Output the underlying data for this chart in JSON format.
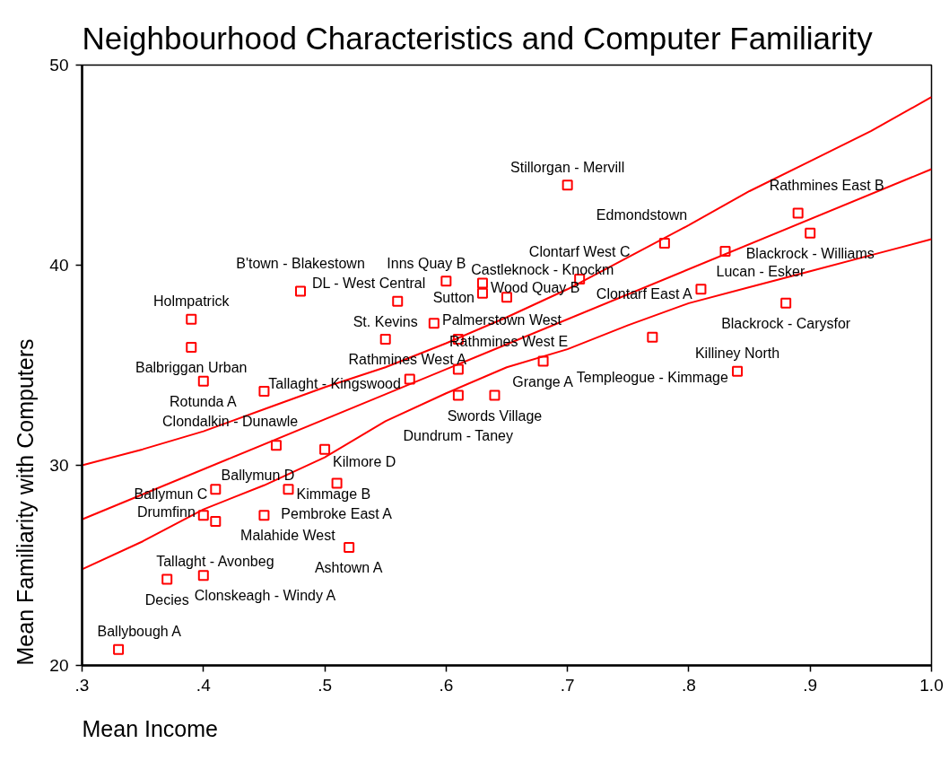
{
  "chart_data": {
    "type": "scatter",
    "title": "Neighbourhood Characteristics and Computer Familiarity",
    "xlabel": "Mean Income",
    "ylabel": "Mean Familiarity with Computers",
    "xlim": [
      0.3,
      1.0
    ],
    "ylim": [
      20,
      50
    ],
    "xticks": [
      {
        "value": 0.3,
        "label": ".3"
      },
      {
        "value": 0.4,
        "label": ".4"
      },
      {
        "value": 0.5,
        "label": ".5"
      },
      {
        "value": 0.6,
        "label": ".6"
      },
      {
        "value": 0.7,
        "label": ".7"
      },
      {
        "value": 0.8,
        "label": ".8"
      },
      {
        "value": 0.9,
        "label": ".9"
      },
      {
        "value": 1.0,
        "label": "1.0"
      }
    ],
    "yticks": [
      20,
      30,
      40,
      50
    ],
    "series": [
      {
        "marker": "square",
        "color": "#ff0000",
        "x": [
          0.33,
          0.37,
          0.4,
          0.52,
          0.4,
          0.41,
          0.45,
          0.41,
          0.47,
          0.51,
          0.46,
          0.5,
          0.45,
          0.4,
          0.39,
          0.39,
          0.48,
          0.56,
          0.59,
          0.55,
          0.61,
          0.61,
          0.57,
          0.61,
          0.64,
          0.6,
          0.63,
          0.63,
          0.65,
          0.71,
          0.7,
          0.68,
          0.77,
          0.84,
          0.78,
          0.83,
          0.81,
          0.88,
          0.89,
          0.9
        ],
        "values": [
          20.8,
          24.3,
          24.5,
          25.9,
          27.5,
          27.2,
          27.5,
          28.8,
          28.8,
          29.1,
          31.0,
          30.8,
          33.7,
          34.2,
          35.9,
          37.3,
          38.7,
          38.2,
          37.1,
          36.3,
          36.3,
          34.8,
          34.3,
          33.5,
          33.5,
          39.2,
          39.1,
          38.6,
          38.4,
          39.3,
          44.0,
          35.2,
          36.4,
          34.7,
          41.1,
          40.7,
          38.8,
          38.1,
          42.6,
          41.6
        ]
      },
      {
        "type": "line",
        "color": "#ff0000",
        "x": [
          0.3,
          1.0
        ],
        "values": [
          27.3,
          44.8
        ]
      },
      {
        "type": "line",
        "color": "#ff0000",
        "x": [
          0.3,
          0.35,
          0.4,
          0.45,
          0.5,
          0.55,
          0.6,
          0.65,
          0.7,
          0.75,
          0.8,
          0.85,
          0.9,
          0.95,
          1.0
        ],
        "values": [
          30.0,
          30.8,
          31.7,
          32.8,
          33.9,
          34.9,
          36.1,
          37.4,
          38.8,
          40.4,
          42.0,
          43.7,
          45.2,
          46.7,
          48.4
        ]
      },
      {
        "type": "line",
        "color": "#ff0000",
        "x": [
          0.3,
          0.35,
          0.4,
          0.45,
          0.5,
          0.55,
          0.6,
          0.65,
          0.7,
          0.75,
          0.8,
          0.85,
          0.9,
          0.95,
          1.0
        ],
        "values": [
          24.8,
          26.2,
          27.8,
          29.0,
          30.4,
          32.2,
          33.6,
          34.9,
          35.8,
          37.0,
          38.1,
          38.9,
          39.7,
          40.5,
          41.3
        ]
      }
    ],
    "annotations": [
      {
        "text": "Ballybough A",
        "x": 0.33,
        "y": 20.8
      },
      {
        "text": "Decies",
        "x": 0.37,
        "y": 24.3
      },
      {
        "text": "Clonskeagh - Windy A",
        "x": 0.4,
        "y": 24.5
      },
      {
        "text": "Ashtown A",
        "x": 0.52,
        "y": 25.9
      },
      {
        "text": "Drumfinn",
        "x": 0.4,
        "y": 27.5
      },
      {
        "text": "Tallaght - Avonbeg",
        "x": 0.41,
        "y": 27.2
      },
      {
        "text": "Malahide West",
        "x": 0.45,
        "y": 27.5
      },
      {
        "text": "Ballymun C",
        "x": 0.41,
        "y": 28.8
      },
      {
        "text": "Kimmage B",
        "x": 0.47,
        "y": 28.8
      },
      {
        "text": "Pembroke East A",
        "x": 0.51,
        "y": 29.1
      },
      {
        "text": "Ballymun D",
        "x": 0.46,
        "y": 31.0
      },
      {
        "text": "Kilmore D",
        "x": 0.5,
        "y": 30.8
      },
      {
        "text": "Clondalkin - Dunawle",
        "x": 0.45,
        "y": 33.7
      },
      {
        "text": "Rotunda A",
        "x": 0.4,
        "y": 34.2
      },
      {
        "text": "Balbriggan Urban",
        "x": 0.39,
        "y": 35.9
      },
      {
        "text": "Holmpatrick",
        "x": 0.39,
        "y": 37.3
      },
      {
        "text": "B'town - Blakestown",
        "x": 0.48,
        "y": 38.7
      },
      {
        "text": "DL - West Central",
        "x": 0.56,
        "y": 38.2
      },
      {
        "text": "Palmerstown West",
        "x": 0.59,
        "y": 37.1
      },
      {
        "text": "St. Kevins",
        "x": 0.55,
        "y": 36.3
      },
      {
        "text": "Rathmines West A",
        "x": 0.61,
        "y": 36.3
      },
      {
        "text": "Rathmines West E",
        "x": 0.61,
        "y": 34.8
      },
      {
        "text": "Tallaght - Kingswood",
        "x": 0.57,
        "y": 34.3
      },
      {
        "text": "Dundrum - Taney",
        "x": 0.61,
        "y": 33.5
      },
      {
        "text": "Swords Village",
        "x": 0.64,
        "y": 33.5
      },
      {
        "text": "Inns Quay B",
        "x": 0.6,
        "y": 39.2
      },
      {
        "text": "Wood Quay B",
        "x": 0.63,
        "y": 39.1
      },
      {
        "text": "Sutton",
        "x": 0.63,
        "y": 38.6
      },
      {
        "text": "Castleknock - Knockm",
        "x": 0.65,
        "y": 38.4
      },
      {
        "text": "Clontarf West C",
        "x": 0.71,
        "y": 39.3
      },
      {
        "text": "Stillorgan - Mervill",
        "x": 0.7,
        "y": 44.0
      },
      {
        "text": "Grange A",
        "x": 0.68,
        "y": 35.2
      },
      {
        "text": "Templeogue - Kimmage",
        "x": 0.77,
        "y": 36.4
      },
      {
        "text": "Killiney North",
        "x": 0.84,
        "y": 34.7
      },
      {
        "text": "Edmondstown",
        "x": 0.78,
        "y": 41.1
      },
      {
        "text": "Lucan - Esker",
        "x": 0.83,
        "y": 40.7
      },
      {
        "text": "Clontarf East A",
        "x": 0.81,
        "y": 38.8
      },
      {
        "text": "Blackrock - Carysfor",
        "x": 0.88,
        "y": 38.1
      },
      {
        "text": "Rathmines East B",
        "x": 0.89,
        "y": 42.6
      },
      {
        "text": "Blackrock - Williams",
        "x": 0.9,
        "y": 41.6
      }
    ]
  }
}
